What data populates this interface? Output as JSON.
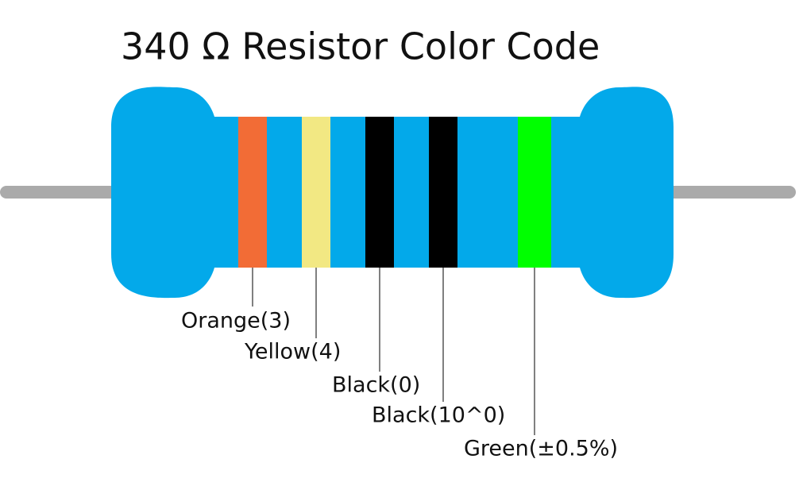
{
  "title": "340 Ω Resistor Color Code",
  "bands": [
    {
      "label": "Orange(3)",
      "color": "#f26c36"
    },
    {
      "label": "Yellow(4)",
      "color": "#f2e883"
    },
    {
      "label": "Black(0)",
      "color": "#000000"
    },
    {
      "label": "Black(10^0)",
      "color": "#000000"
    },
    {
      "label": "Green(±0.5%)",
      "color": "#00ff00"
    }
  ]
}
